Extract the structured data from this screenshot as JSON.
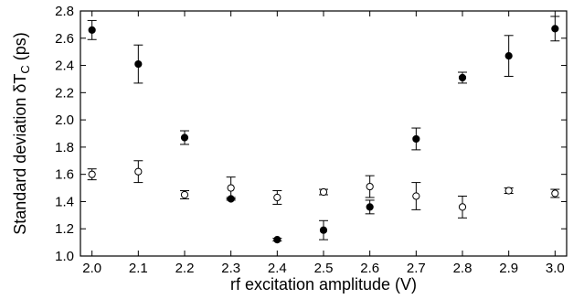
{
  "chart_data": {
    "type": "scatter",
    "xlabel": "rf excitation amplitude (V)",
    "ylabel": "Standard deviation δT",
    "ylabel_sub": "C",
    "ylabel_unit": " (ps)",
    "xlim": [
      1.975,
      3.025
    ],
    "ylim": [
      1.0,
      2.8
    ],
    "x_ticks": [
      2.0,
      2.1,
      2.2,
      2.3,
      2.4,
      2.5,
      2.6,
      2.7,
      2.8,
      2.9,
      3.0
    ],
    "x_tick_labels": [
      "2.0",
      "2.1",
      "2.2",
      "2.3",
      "2.4",
      "2.5",
      "2.6",
      "2.7",
      "2.8",
      "2.9",
      "3.0"
    ],
    "y_ticks": [
      1.0,
      1.2,
      1.4,
      1.6,
      1.8,
      2.0,
      2.2,
      2.4,
      2.6,
      2.8
    ],
    "y_tick_labels": [
      "1.0",
      "1.2",
      "1.4",
      "1.6",
      "1.8",
      "2.0",
      "2.2",
      "2.4",
      "2.6",
      "2.8"
    ],
    "grid": false,
    "legend": "none",
    "series": [
      {
        "marker": "filled-circle",
        "color": "#000000",
        "x": [
          2.0,
          2.1,
          2.2,
          2.3,
          2.4,
          2.5,
          2.6,
          2.7,
          2.8,
          2.9,
          3.0
        ],
        "y": [
          2.66,
          2.41,
          1.87,
          1.42,
          1.12,
          1.19,
          1.36,
          1.86,
          2.31,
          2.47,
          2.67
        ],
        "err": [
          0.07,
          0.14,
          0.05,
          0.01,
          0.01,
          0.07,
          0.05,
          0.08,
          0.04,
          0.15,
          0.09
        ]
      },
      {
        "marker": "open-circle",
        "color": "#000000",
        "x": [
          2.0,
          2.1,
          2.2,
          2.3,
          2.4,
          2.5,
          2.6,
          2.7,
          2.8,
          2.9,
          3.0
        ],
        "y": [
          1.6,
          1.62,
          1.45,
          1.5,
          1.43,
          1.47,
          1.51,
          1.44,
          1.36,
          1.48,
          1.46
        ],
        "err": [
          0.04,
          0.08,
          0.03,
          0.08,
          0.05,
          0.02,
          0.08,
          0.1,
          0.08,
          0.02,
          0.03
        ]
      }
    ]
  }
}
